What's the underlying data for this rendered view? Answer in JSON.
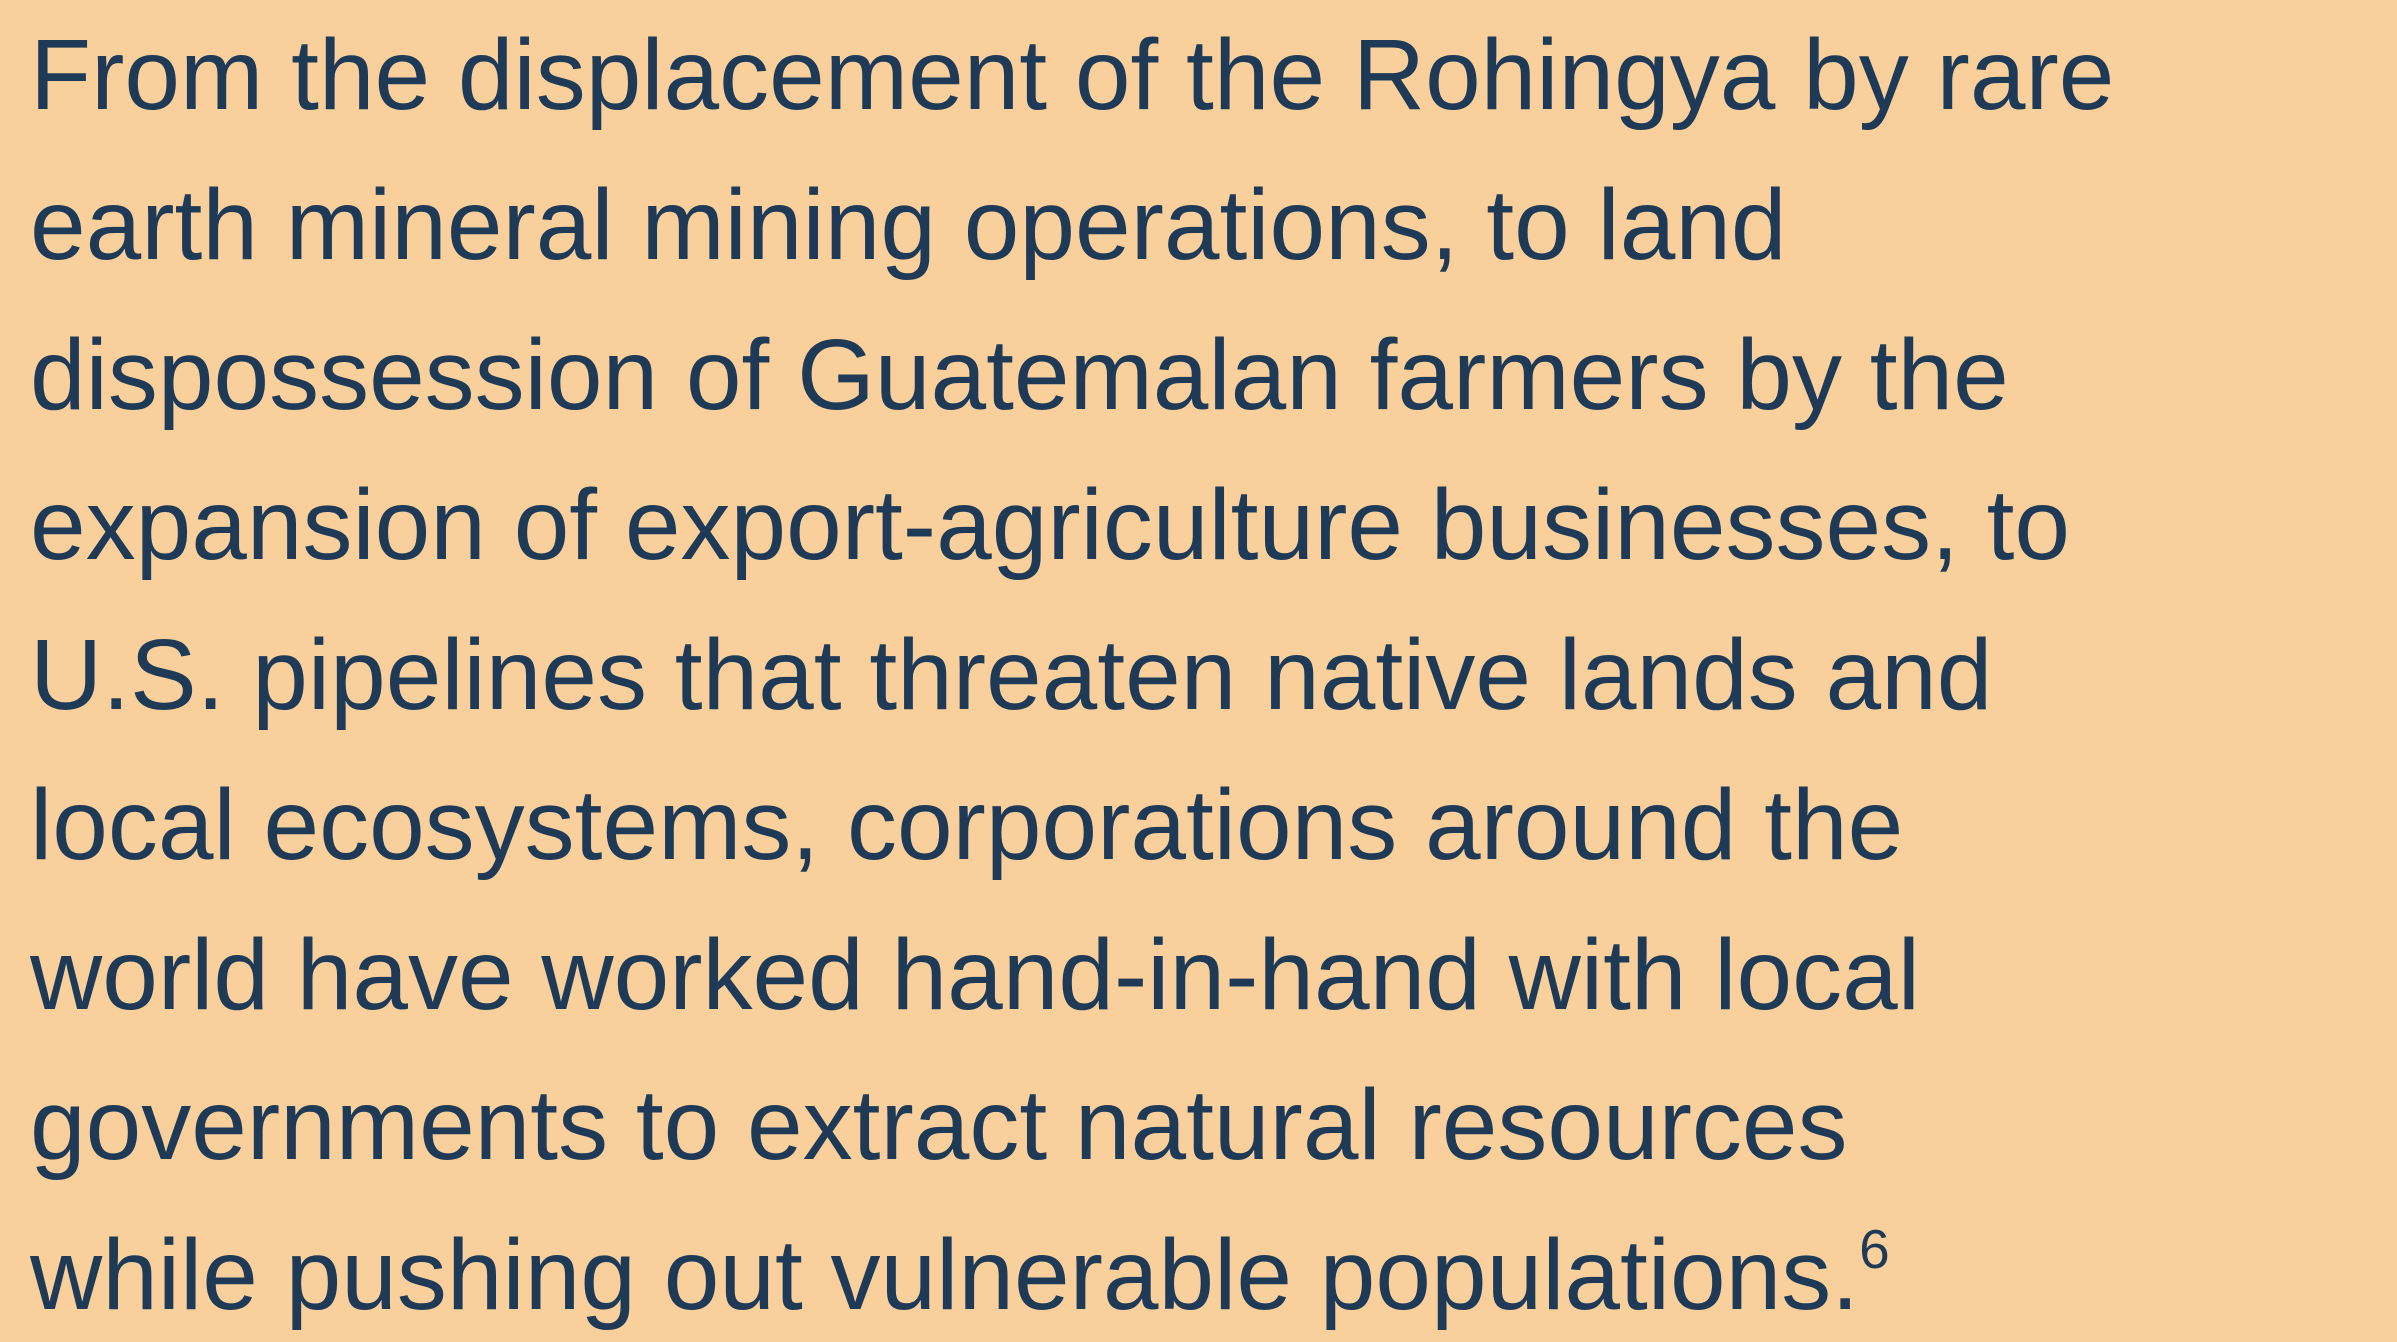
{
  "paragraph": {
    "lines": [
      "From the displacement of the Rohingya by rare",
      "earth mineral mining operations, to land",
      "dispossession of Guatemalan farmers by the",
      "expansion of export-agriculture businesses, to",
      "U.S. pipelines that threaten native lands and",
      "local ecosystems, corporations around the",
      "world have worked hand-in-hand with local",
      "governments to extract natural resources",
      "while pushing out vulnerable populations."
    ],
    "footnote": "6"
  }
}
